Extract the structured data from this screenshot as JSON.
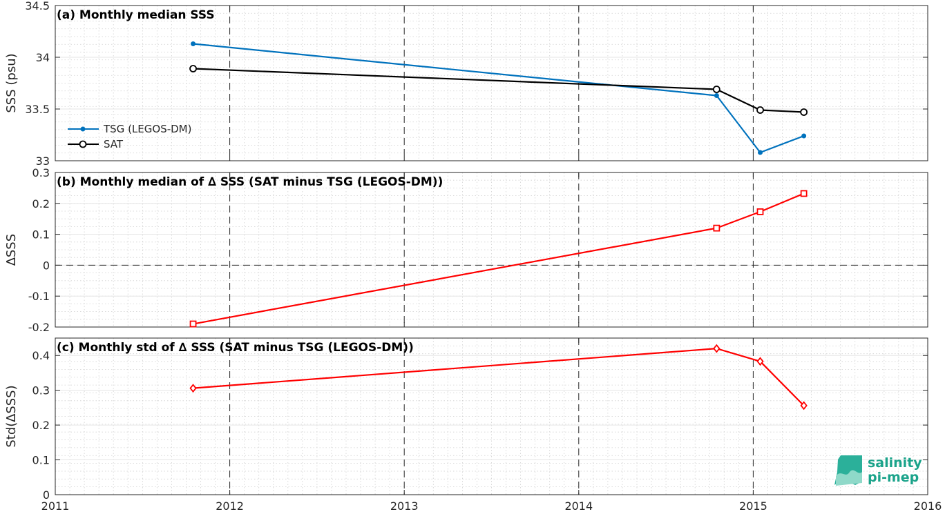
{
  "x_ticks": [
    "2011",
    "2012",
    "2013",
    "2014",
    "2015",
    "2016"
  ],
  "logo": {
    "line1": "salinity",
    "line2": "pi-mep"
  },
  "chart_data": [
    {
      "type": "line",
      "title": "(a) Monthly median SSS",
      "xlabel": "",
      "ylabel": "SSS (psu)",
      "xlim": [
        2011,
        2016
      ],
      "ylim": [
        33,
        34.5
      ],
      "y_ticks": [
        "33",
        "33.5",
        "34",
        "34.5"
      ],
      "grid": true,
      "legend_position": "left",
      "x": [
        2011.79,
        2014.79,
        2015.04,
        2015.29
      ],
      "series": [
        {
          "name": "TSG (LEGOS-DM)",
          "color": "#0072bd",
          "marker": "star",
          "values": [
            34.13,
            33.63,
            33.08,
            33.24
          ]
        },
        {
          "name": "SAT",
          "color": "#000000",
          "marker": "circle",
          "values": [
            33.89,
            33.69,
            33.49,
            33.47
          ]
        }
      ]
    },
    {
      "type": "line",
      "title": "(b) Monthly median of ∆ SSS (SAT minus TSG (LEGOS-DM))",
      "xlabel": "",
      "ylabel": "∆SSS",
      "xlim": [
        2011,
        2016
      ],
      "ylim": [
        -0.2,
        0.3
      ],
      "y_ticks": [
        "-0.2",
        "-0.1",
        "0",
        "0.1",
        "0.2",
        "0.3"
      ],
      "grid": true,
      "reference_line": 0,
      "x": [
        2011.79,
        2014.79,
        2015.04,
        2015.29
      ],
      "series": [
        {
          "color": "#ff0000",
          "marker": "square",
          "values": [
            -0.19,
            0.12,
            0.173,
            0.232
          ]
        }
      ]
    },
    {
      "type": "line",
      "title": "(c) Monthly std of ∆ SSS (SAT minus TSG (LEGOS-DM))",
      "xlabel": "",
      "ylabel": "Std(∆SSS)",
      "xlim": [
        2011,
        2016
      ],
      "ylim": [
        0,
        0.45
      ],
      "y_ticks": [
        "0",
        "0.1",
        "0.2",
        "0.3",
        "0.4"
      ],
      "grid": true,
      "x": [
        2011.79,
        2014.79,
        2015.04,
        2015.29
      ],
      "series": [
        {
          "color": "#ff0000",
          "marker": "diamond",
          "values": [
            0.306,
            0.42,
            0.383,
            0.256
          ]
        }
      ]
    }
  ]
}
